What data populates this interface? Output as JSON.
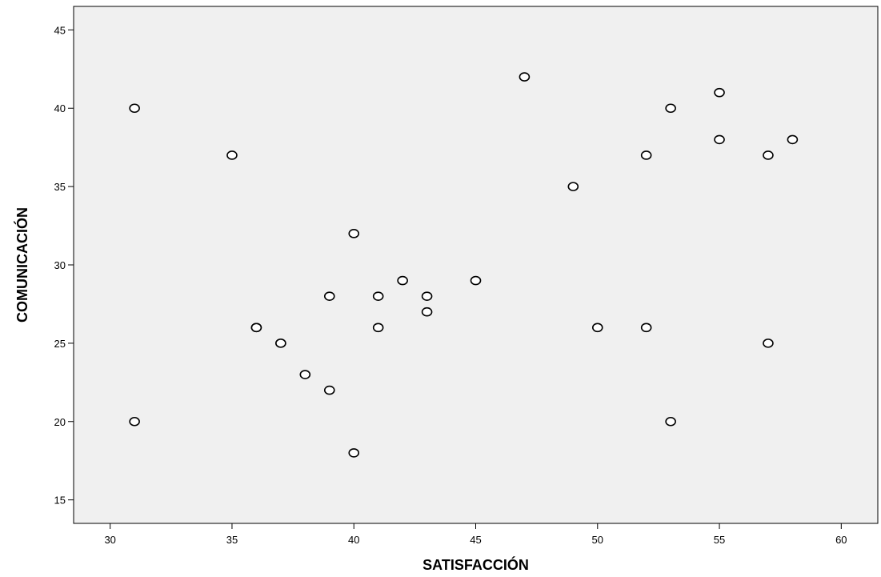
{
  "chart_data": {
    "type": "scatter",
    "title": "",
    "xlabel": "SATISFACCIÓN",
    "ylabel": "COMUNICACIÓN",
    "xlim": [
      28.5,
      61.5
    ],
    "ylim": [
      13.5,
      46.5
    ],
    "xticks": [
      30,
      35,
      40,
      45,
      50,
      55,
      60
    ],
    "yticks": [
      15,
      20,
      25,
      30,
      35,
      40,
      45
    ],
    "grid": false,
    "legend": "none",
    "colors": {
      "plot_background": "#f0f0f0",
      "marker_fill": "#ffffff",
      "marker_stroke": "#000000",
      "axis": "#000000"
    },
    "points": [
      {
        "x": 31,
        "y": 40
      },
      {
        "x": 31,
        "y": 20
      },
      {
        "x": 35,
        "y": 37
      },
      {
        "x": 36,
        "y": 26
      },
      {
        "x": 36,
        "y": 26
      },
      {
        "x": 37,
        "y": 25
      },
      {
        "x": 37,
        "y": 25
      },
      {
        "x": 38,
        "y": 23
      },
      {
        "x": 39,
        "y": 28
      },
      {
        "x": 39,
        "y": 22
      },
      {
        "x": 40,
        "y": 32
      },
      {
        "x": 40,
        "y": 18
      },
      {
        "x": 41,
        "y": 28
      },
      {
        "x": 41,
        "y": 26
      },
      {
        "x": 42,
        "y": 29
      },
      {
        "x": 43,
        "y": 28
      },
      {
        "x": 43,
        "y": 27
      },
      {
        "x": 45,
        "y": 29
      },
      {
        "x": 47,
        "y": 42
      },
      {
        "x": 49,
        "y": 35
      },
      {
        "x": 50,
        "y": 26
      },
      {
        "x": 52,
        "y": 37
      },
      {
        "x": 52,
        "y": 26
      },
      {
        "x": 53,
        "y": 40
      },
      {
        "x": 53,
        "y": 20
      },
      {
        "x": 55,
        "y": 41
      },
      {
        "x": 55,
        "y": 38
      },
      {
        "x": 57,
        "y": 37
      },
      {
        "x": 57,
        "y": 25
      },
      {
        "x": 58,
        "y": 38
      }
    ]
  }
}
